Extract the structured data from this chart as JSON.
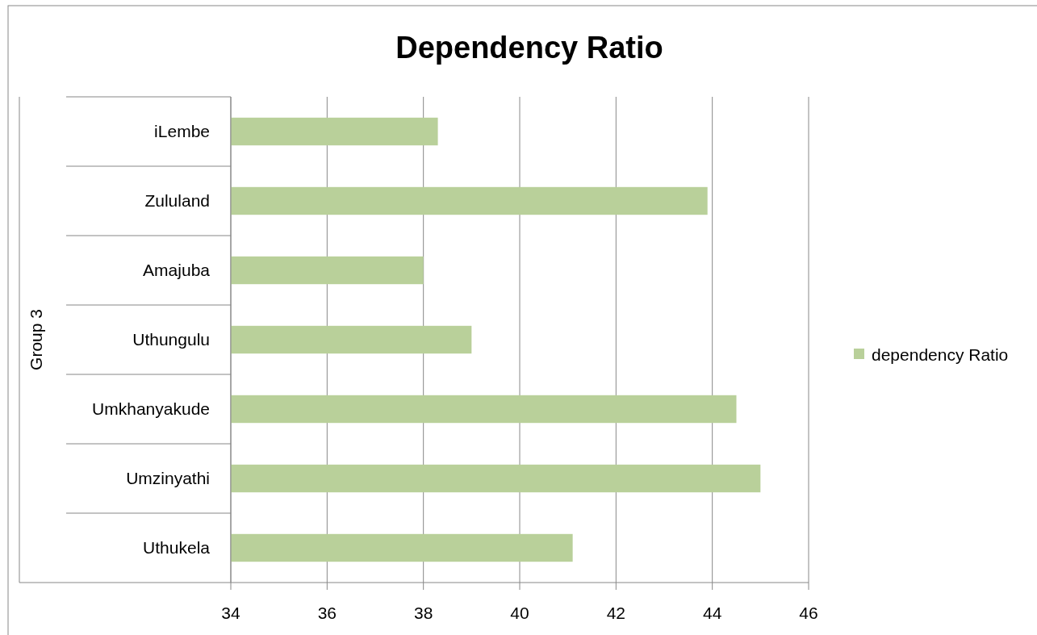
{
  "chart_data": {
    "type": "bar",
    "orientation": "horizontal",
    "title": "Dependency Ratio",
    "ylabel": "Group 3",
    "categories": [
      "iLembe",
      "Zululand",
      "Amajuba",
      "Uthungulu",
      "Umkhanyakude",
      "Umzinyathi",
      "Uthukela"
    ],
    "series": [
      {
        "name": "dependency Ratio",
        "color": "#b9d09a",
        "values": [
          38.3,
          43.9,
          38.0,
          39.0,
          44.5,
          45.0,
          41.1
        ]
      }
    ],
    "xlim": [
      34,
      46
    ],
    "xticks": [
      34,
      36,
      38,
      40,
      42,
      44,
      46
    ],
    "grid": "x",
    "legend": "right"
  }
}
